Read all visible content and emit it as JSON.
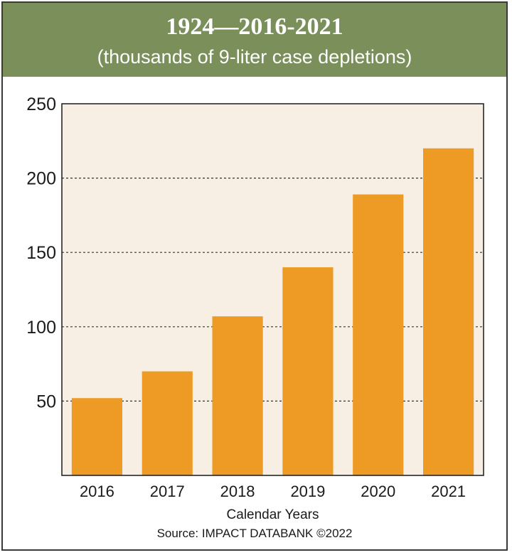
{
  "header": {
    "title": "1924—2016-2021",
    "subtitle": "(thousands of 9-liter case depletions)"
  },
  "source": "Source: IMPACT DATABANK ©2022",
  "colors": {
    "header_bg": "#7a8f5a",
    "plot_bg": "#f7efe4",
    "bar": "#ee9b26"
  },
  "chart_data": {
    "type": "bar",
    "title": "1924—2016-2021",
    "subtitle": "(thousands of 9-liter case depletions)",
    "xlabel": "Calendar Years",
    "ylabel": "",
    "categories": [
      "2016",
      "2017",
      "2018",
      "2019",
      "2020",
      "2021"
    ],
    "values": [
      52,
      70,
      107,
      140,
      189,
      220
    ],
    "ylim": [
      0,
      250
    ],
    "yticks": [
      50,
      100,
      150,
      200,
      250
    ],
    "grid": true,
    "legend": "none"
  }
}
